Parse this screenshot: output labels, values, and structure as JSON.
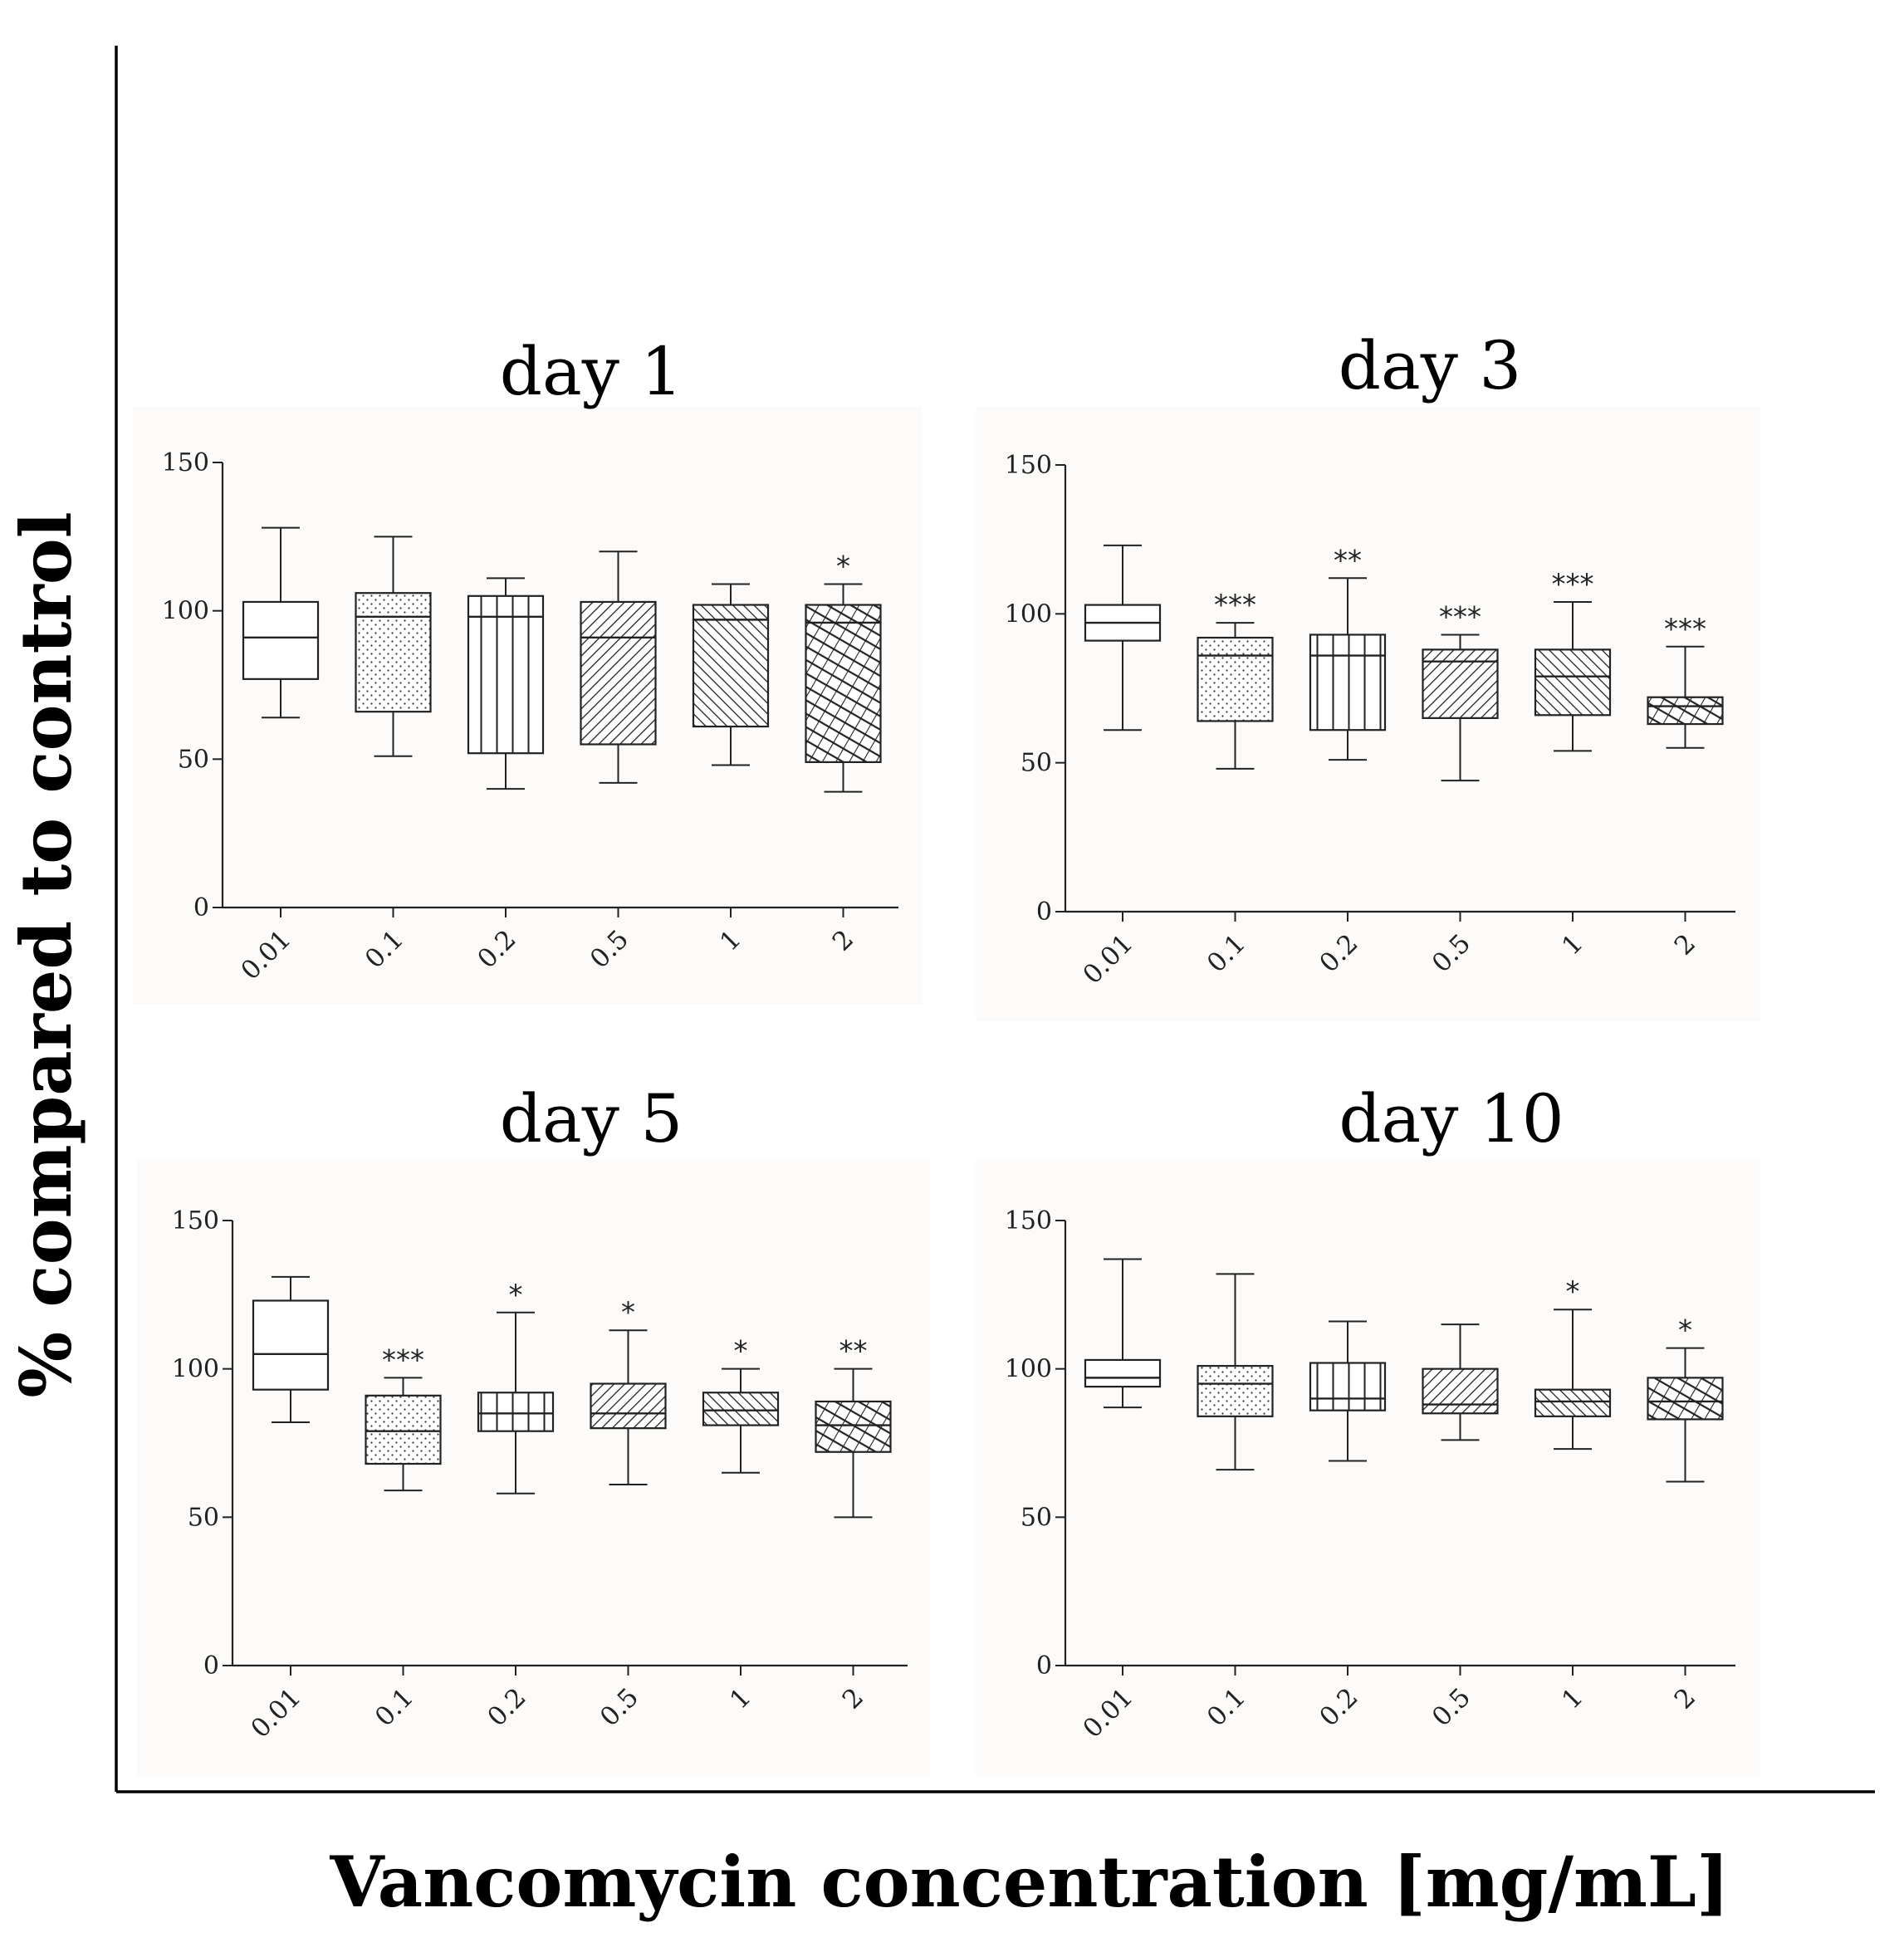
{
  "figure": {
    "ylabel": "% compared to control",
    "xlabel": "Vancomycin concentration [mg/mL]"
  },
  "chart_data": [
    {
      "type": "box",
      "title": "day 1",
      "categories": [
        "0.01",
        "0.1",
        "0.2",
        "0.5",
        "1",
        "2"
      ],
      "ylim": [
        0,
        150
      ],
      "yticks": [
        0,
        50,
        100,
        150
      ],
      "fills": [
        "none",
        "dots",
        "vertical",
        "diag-right",
        "diag-left",
        "cross"
      ],
      "boxes": [
        {
          "min": 64,
          "q1": 77,
          "median": 91,
          "q3": 103,
          "max": 128,
          "sig": ""
        },
        {
          "min": 51,
          "q1": 66,
          "median": 98,
          "q3": 106,
          "max": 125,
          "sig": ""
        },
        {
          "min": 40,
          "q1": 52,
          "median": 98,
          "q3": 105,
          "max": 111,
          "sig": ""
        },
        {
          "min": 42,
          "q1": 55,
          "median": 91,
          "q3": 103,
          "max": 120,
          "sig": ""
        },
        {
          "min": 48,
          "q1": 61,
          "median": 97,
          "q3": 102,
          "max": 109,
          "sig": ""
        },
        {
          "min": 39,
          "q1": 49,
          "median": 96,
          "q3": 102,
          "max": 109,
          "sig": "*"
        }
      ]
    },
    {
      "type": "box",
      "title": "day 3",
      "categories": [
        "0.01",
        "0.1",
        "0.2",
        "0.5",
        "1",
        "2"
      ],
      "ylim": [
        0,
        150
      ],
      "yticks": [
        0,
        50,
        100,
        150
      ],
      "fills": [
        "none",
        "dots",
        "vertical",
        "diag-right",
        "diag-left",
        "cross"
      ],
      "boxes": [
        {
          "min": 61,
          "q1": 91,
          "median": 97,
          "q3": 103,
          "max": 123,
          "sig": ""
        },
        {
          "min": 48,
          "q1": 64,
          "median": 86,
          "q3": 92,
          "max": 97,
          "sig": "***"
        },
        {
          "min": 51,
          "q1": 61,
          "median": 86,
          "q3": 93,
          "max": 112,
          "sig": "**"
        },
        {
          "min": 44,
          "q1": 65,
          "median": 84,
          "q3": 88,
          "max": 93,
          "sig": "***"
        },
        {
          "min": 54,
          "q1": 66,
          "median": 79,
          "q3": 88,
          "max": 104,
          "sig": "***"
        },
        {
          "min": 55,
          "q1": 63,
          "median": 69,
          "q3": 72,
          "max": 89,
          "sig": "***"
        }
      ]
    },
    {
      "type": "box",
      "title": "day 5",
      "categories": [
        "0.01",
        "0.1",
        "0.2",
        "0.5",
        "1",
        "2"
      ],
      "ylim": [
        0,
        150
      ],
      "yticks": [
        0,
        50,
        100,
        150
      ],
      "fills": [
        "none",
        "dots",
        "vertical",
        "diag-right",
        "diag-left",
        "cross"
      ],
      "boxes": [
        {
          "min": 82,
          "q1": 93,
          "median": 105,
          "q3": 123,
          "max": 131,
          "sig": ""
        },
        {
          "min": 59,
          "q1": 68,
          "median": 79,
          "q3": 91,
          "max": 97,
          "sig": "***"
        },
        {
          "min": 58,
          "q1": 79,
          "median": 85,
          "q3": 92,
          "max": 119,
          "sig": "*"
        },
        {
          "min": 61,
          "q1": 80,
          "median": 85,
          "q3": 95,
          "max": 113,
          "sig": "*"
        },
        {
          "min": 65,
          "q1": 81,
          "median": 86,
          "q3": 92,
          "max": 100,
          "sig": "*"
        },
        {
          "min": 50,
          "q1": 72,
          "median": 81,
          "q3": 89,
          "max": 100,
          "sig": "**"
        }
      ]
    },
    {
      "type": "box",
      "title": "day 10",
      "categories": [
        "0.01",
        "0.1",
        "0.2",
        "0.5",
        "1",
        "2"
      ],
      "ylim": [
        0,
        150
      ],
      "yticks": [
        0,
        50,
        100,
        150
      ],
      "fills": [
        "none",
        "dots",
        "vertical",
        "diag-right",
        "diag-left",
        "cross"
      ],
      "boxes": [
        {
          "min": 87,
          "q1": 94,
          "median": 97,
          "q3": 103,
          "max": 137,
          "sig": ""
        },
        {
          "min": 66,
          "q1": 84,
          "median": 95,
          "q3": 101,
          "max": 132,
          "sig": ""
        },
        {
          "min": 69,
          "q1": 86,
          "median": 90,
          "q3": 102,
          "max": 116,
          "sig": ""
        },
        {
          "min": 76,
          "q1": 85,
          "median": 88,
          "q3": 100,
          "max": 115,
          "sig": ""
        },
        {
          "min": 73,
          "q1": 84,
          "median": 89,
          "q3": 93,
          "max": 120,
          "sig": "*"
        },
        {
          "min": 62,
          "q1": 83,
          "median": 89,
          "q3": 97,
          "max": 107,
          "sig": "*"
        }
      ]
    }
  ]
}
